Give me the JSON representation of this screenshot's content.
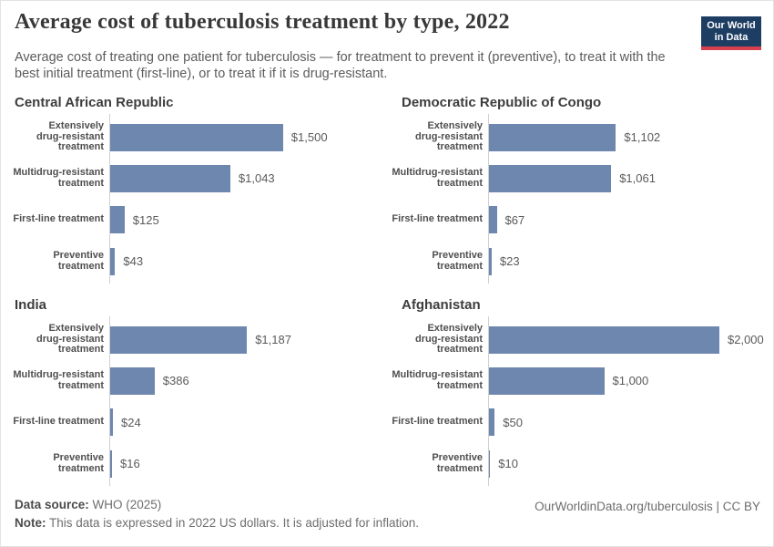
{
  "header": {
    "title": "Average cost of tuberculosis treatment by type, 2022",
    "subtitle": "Average cost of treating one patient for tuberculosis — for treatment to prevent it (preventive), to treat it with the best initial treatment (first-line), or to treat it if it is drug-resistant.",
    "logo": {
      "line1": "Our World",
      "line2": "in Data"
    }
  },
  "chart_data": [
    {
      "type": "bar",
      "title": "Central African Republic",
      "categories": [
        "Extensively\ndrug-resistant\ntreatment",
        "Multidrug-resistant\ntreatment",
        "First-line treatment",
        "Preventive\ntreatment"
      ],
      "values": [
        1500,
        1043,
        125,
        43
      ],
      "value_labels": [
        "$1,500",
        "$1,043",
        "$125",
        "$43"
      ],
      "xlim": [
        0,
        2000
      ],
      "orientation": "horizontal",
      "grid": false
    },
    {
      "type": "bar",
      "title": "Democratic Republic of Congo",
      "categories": [
        "Extensively\ndrug-resistant\ntreatment",
        "Multidrug-resistant\ntreatment",
        "First-line treatment",
        "Preventive\ntreatment"
      ],
      "values": [
        1102,
        1061,
        67,
        23
      ],
      "value_labels": [
        "$1,102",
        "$1,061",
        "$67",
        "$23"
      ],
      "xlim": [
        0,
        2000
      ],
      "orientation": "horizontal",
      "grid": false
    },
    {
      "type": "bar",
      "title": "India",
      "categories": [
        "Extensively\ndrug-resistant\ntreatment",
        "Multidrug-resistant\ntreatment",
        "First-line treatment",
        "Preventive\ntreatment"
      ],
      "values": [
        1187,
        386,
        24,
        16
      ],
      "value_labels": [
        "$1,187",
        "$386",
        "$24",
        "$16"
      ],
      "xlim": [
        0,
        2000
      ],
      "orientation": "horizontal",
      "grid": false
    },
    {
      "type": "bar",
      "title": "Afghanistan",
      "categories": [
        "Extensively\ndrug-resistant\ntreatment",
        "Multidrug-resistant\ntreatment",
        "First-line treatment",
        "Preventive\ntreatment"
      ],
      "values": [
        2000,
        1000,
        50,
        10
      ],
      "value_labels": [
        "$2,000",
        "$1,000",
        "$50",
        "$10"
      ],
      "xlim": [
        0,
        2000
      ],
      "orientation": "horizontal",
      "grid": false
    }
  ],
  "colors": {
    "bar": "#6e87ae",
    "logo_navy": "#1d3d63",
    "logo_red": "#d8404f"
  },
  "footer": {
    "source_label": "Data source:",
    "source_text": " WHO (2025)",
    "note_label": "Note:",
    "note_text": " This data is expressed in 2022 US dollars. It is adjusted for inflation.",
    "credit": "OurWorldinData.org/tuberculosis | CC BY"
  }
}
